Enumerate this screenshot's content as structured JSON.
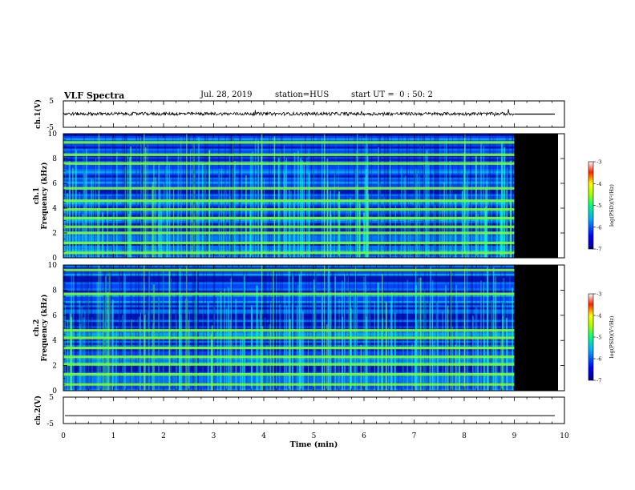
{
  "header": {
    "title": "VLF Spectra",
    "date": "Jul. 28, 2019",
    "station": "station=HUS",
    "start": "start UT =  0 : 50: 2"
  },
  "chart_data": [
    {
      "type": "line",
      "panel": "waveform-top",
      "ylabel": "ch.1(V)",
      "ylim": [
        -5,
        5
      ],
      "yticks": [
        5,
        -5
      ],
      "xlim": [
        0,
        10
      ],
      "series": [
        {
          "values_description_level": 0.1,
          "data_end_min": 9.0
        }
      ]
    },
    {
      "type": "heatmap",
      "panel": "spectrogram-ch1",
      "ylabel_line1": "ch.1",
      "ylabel_line2": "Frequency (kHz)",
      "ylim": [
        0,
        10
      ],
      "yticks": [
        "0",
        "2",
        "4",
        "6",
        "8",
        "10"
      ],
      "xlim": [
        0,
        10
      ],
      "data_end_min": 9.0,
      "bands_khz": [
        0.4,
        1.2,
        2.0,
        2.5,
        3.2,
        3.9,
        4.6,
        5.6,
        7.6,
        8.3,
        9.3
      ],
      "colorbar": {
        "label": "log(PSD)(V²/Hz)",
        "range": [
          -7,
          -3
        ],
        "ticks": [
          "-3",
          "-4",
          "-5",
          "-6",
          "-7"
        ]
      }
    },
    {
      "type": "heatmap",
      "panel": "spectrogram-ch2",
      "ylabel_line1": "ch.2",
      "ylabel_line2": "Frequency (kHz)",
      "ylim": [
        0,
        10
      ],
      "yticks": [
        "0",
        "2",
        "4",
        "6",
        "8",
        "10"
      ],
      "xlim": [
        0,
        10
      ],
      "data_end_min": 9.0,
      "bands_khz": [
        0.5,
        1.3,
        2.1,
        2.7,
        3.4,
        4.2,
        4.8,
        7.7,
        9.6
      ],
      "colorbar": {
        "label": "log(PSD)(V²/Hz)",
        "range": [
          -7,
          -3
        ],
        "ticks": [
          "-3",
          "-4",
          "-5",
          "-6",
          "-7"
        ]
      }
    },
    {
      "type": "line",
      "panel": "waveform-bottom",
      "ylabel": "ch.2(V)",
      "ylim": [
        -5,
        5
      ],
      "yticks": [
        5,
        -5
      ],
      "xlim": [
        0,
        10
      ],
      "series": [
        {
          "level": -2.0
        }
      ]
    }
  ],
  "xaxis": {
    "label": "Time (min)",
    "ticks": [
      "0",
      "1",
      "2",
      "3",
      "4",
      "5",
      "6",
      "7",
      "8",
      "9",
      "10"
    ]
  },
  "colors": {
    "band": "#7cff2a",
    "background_low": "#0000a0",
    "background_mid": "#0060ff",
    "fill_no_data": "#000000"
  }
}
